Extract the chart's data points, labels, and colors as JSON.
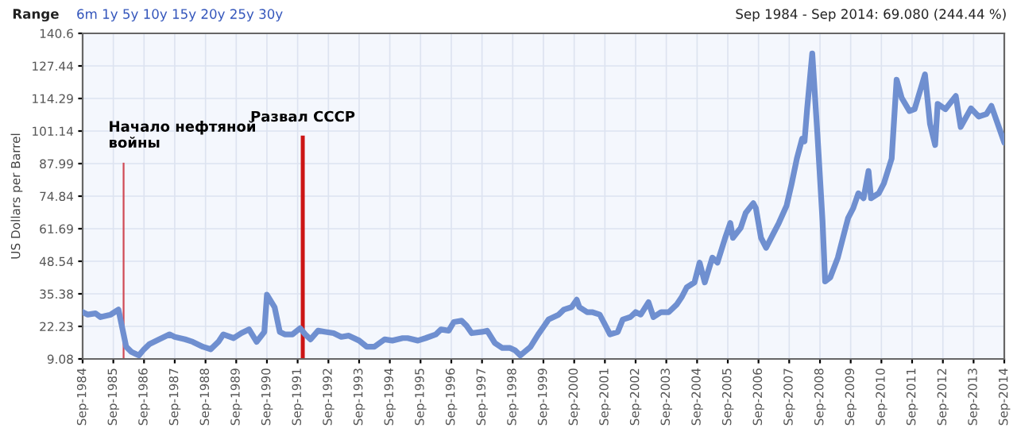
{
  "chart_data": {
    "type": "line",
    "ylabel": "US Dollars per Barrel",
    "annotations": [
      "Range",
      "6m 1y 5y 10y 15y 20y 25y 30y",
      "Sep 1984 - Sep 2014: 69.080 (244.44 %)"
    ],
    "series": [
      {
        "color": "#6f8fd0",
        "x": [
          "1984-09",
          "1984-11",
          "1985-02",
          "1985-04",
          "1985-08",
          "1985-11",
          "1986-02",
          "1986-04",
          "1986-07",
          "1986-09",
          "1986-11",
          "1987-03",
          "1987-07",
          "1987-09",
          "1988-01",
          "1988-04",
          "1988-08",
          "1988-11",
          "1989-02",
          "1989-04",
          "1989-08",
          "1989-11",
          "1990-02",
          "1990-05",
          "1990-08",
          "1990-09",
          "1990-12",
          "1991-02",
          "1991-04",
          "1991-07",
          "1991-10",
          "1991-12",
          "1992-02",
          "1992-05",
          "1992-08",
          "1992-11",
          "1993-02",
          "1993-05",
          "1993-09",
          "1993-12",
          "1994-03",
          "1994-07",
          "1994-10",
          "1995-02",
          "1995-04",
          "1995-08",
          "1995-11",
          "1996-03",
          "1996-05",
          "1996-08",
          "1996-10",
          "1997-01",
          "1997-03",
          "1997-05",
          "1997-09",
          "1997-11",
          "1998-02",
          "1998-05",
          "1998-08",
          "1998-10",
          "1998-12",
          "1999-04",
          "1999-07",
          "1999-09",
          "1999-11",
          "2000-03",
          "2000-05",
          "2000-08",
          "2000-10",
          "2000-11",
          "2001-02",
          "2001-04",
          "2001-07",
          "2001-09",
          "2001-11",
          "2002-02",
          "2002-04",
          "2002-07",
          "2002-09",
          "2002-11",
          "2003-02",
          "2003-04",
          "2003-07",
          "2003-10",
          "2004-01",
          "2004-03",
          "2004-05",
          "2004-08",
          "2004-10",
          "2004-12",
          "2005-03",
          "2005-05",
          "2005-08",
          "2005-10",
          "2005-11",
          "2006-02",
          "2006-04",
          "2006-07",
          "2006-08",
          "2006-10",
          "2006-12",
          "2007-03",
          "2007-05",
          "2007-08",
          "2007-10",
          "2007-12",
          "2008-02",
          "2008-03",
          "2008-04",
          "2008-06",
          "2008-08",
          "2008-10",
          "2008-11",
          "2009-01",
          "2009-04",
          "2009-07",
          "2009-08",
          "2009-10",
          "2009-12",
          "2010-02",
          "2010-04",
          "2010-05",
          "2010-08",
          "2010-10",
          "2011-01",
          "2011-03",
          "2011-05",
          "2011-08",
          "2011-10",
          "2012-02",
          "2012-04",
          "2012-06",
          "2012-07",
          "2012-10",
          "2013-02",
          "2013-04",
          "2013-08",
          "2013-11",
          "2014-02",
          "2014-04",
          "2014-09"
        ],
        "values": [
          28,
          27,
          27.5,
          26,
          27,
          29,
          14,
          12,
          10.5,
          13,
          15,
          17,
          19,
          18,
          17,
          16,
          14,
          13,
          16,
          19,
          17.5,
          19.5,
          21,
          16,
          20,
          35,
          30,
          20,
          19,
          19,
          21.5,
          19,
          17,
          20.5,
          20,
          19.5,
          18,
          18.5,
          16.5,
          14,
          14,
          17,
          16.5,
          17.5,
          17.5,
          16.5,
          17.5,
          19,
          21,
          20.5,
          24,
          24.5,
          22.5,
          19.5,
          20,
          20.5,
          15.5,
          13.5,
          13.5,
          12.5,
          10.5,
          14,
          19,
          22,
          25,
          27,
          29,
          30,
          33,
          30,
          28,
          28,
          27,
          23,
          19,
          20,
          25,
          26,
          28,
          27,
          32,
          26,
          28,
          28,
          31,
          34,
          38,
          40,
          48,
          40,
          50,
          48,
          58,
          64,
          58,
          62,
          68,
          72,
          70,
          58,
          54,
          60,
          64,
          71,
          80,
          90,
          98,
          97,
          110,
          132.5,
          100,
          65,
          40.4,
          42,
          50,
          62,
          66,
          70,
          76,
          74,
          85,
          74,
          76,
          80,
          90,
          121.9,
          114.5,
          109.2,
          110,
          124,
          104,
          95.5,
          112.1,
          110,
          115.3,
          102.8,
          110.3,
          107,
          108,
          111.3,
          96.5
        ]
      }
    ],
    "ylim": [
      9.08,
      140.6
    ],
    "yticks": [
      9.08,
      22.23,
      35.38,
      48.54,
      61.69,
      74.84,
      87.99,
      101.14,
      114.29,
      127.44,
      140.6
    ],
    "xlim": [
      "1984-09",
      "2014-09"
    ],
    "xticks": [
      {
        "value": "1984-09",
        "label": "Sep-1984"
      },
      {
        "value": "1985-09",
        "label": "Sep-1985"
      },
      {
        "value": "1986-09",
        "label": "Sep-1986"
      },
      {
        "value": "1987-09",
        "label": "Sep-1987"
      },
      {
        "value": "1988-09",
        "label": "Sep-1988"
      },
      {
        "value": "1989-09",
        "label": "Sep-1989"
      },
      {
        "value": "1990-09",
        "label": "Sep-1990"
      },
      {
        "value": "1991-09",
        "label": "Sep-1991"
      },
      {
        "value": "1992-09",
        "label": "Sep-1992"
      },
      {
        "value": "1993-09",
        "label": "Sep-1993"
      },
      {
        "value": "1994-09",
        "label": "Sep-1994"
      },
      {
        "value": "1995-09",
        "label": "Sep-1995"
      },
      {
        "value": "1996-09",
        "label": "Sep-1996"
      },
      {
        "value": "1997-09",
        "label": "Sep-1997"
      },
      {
        "value": "1998-09",
        "label": "Sep-1998"
      },
      {
        "value": "1999-09",
        "label": "Sep-1999"
      },
      {
        "value": "2000-09",
        "label": "Sep-2000"
      },
      {
        "value": "2001-09",
        "label": "Sep-2001"
      },
      {
        "value": "2002-09",
        "label": "Sep-2002"
      },
      {
        "value": "2003-09",
        "label": "Sep-2003"
      },
      {
        "value": "2004-09",
        "label": "Sep-2004"
      },
      {
        "value": "2005-09",
        "label": "Sep-2005"
      },
      {
        "value": "2006-09",
        "label": "Sep-2006"
      },
      {
        "value": "2007-09",
        "label": "Sep-2007"
      },
      {
        "value": "2008-09",
        "label": "Sep-2008"
      },
      {
        "value": "2009-09",
        "label": "Sep-2009"
      },
      {
        "value": "2010-09",
        "label": "Sep-2010"
      },
      {
        "value": "2011-09",
        "label": "Sep-2011"
      },
      {
        "value": "2012-09",
        "label": "Sep-2012"
      },
      {
        "value": "2013-09",
        "label": "Sep-2013"
      },
      {
        "value": "2014-09",
        "label": "Sep-2014"
      }
    ],
    "ref_lines": [
      {
        "axis": "x",
        "value": "1986-01",
        "label": "Начало нефтяной\nвойны",
        "color": "#d04a55"
      },
      {
        "axis": "x",
        "value": "1991-11",
        "label": "Развал СССР",
        "color": "#cc1515"
      }
    ],
    "grid": true
  }
}
